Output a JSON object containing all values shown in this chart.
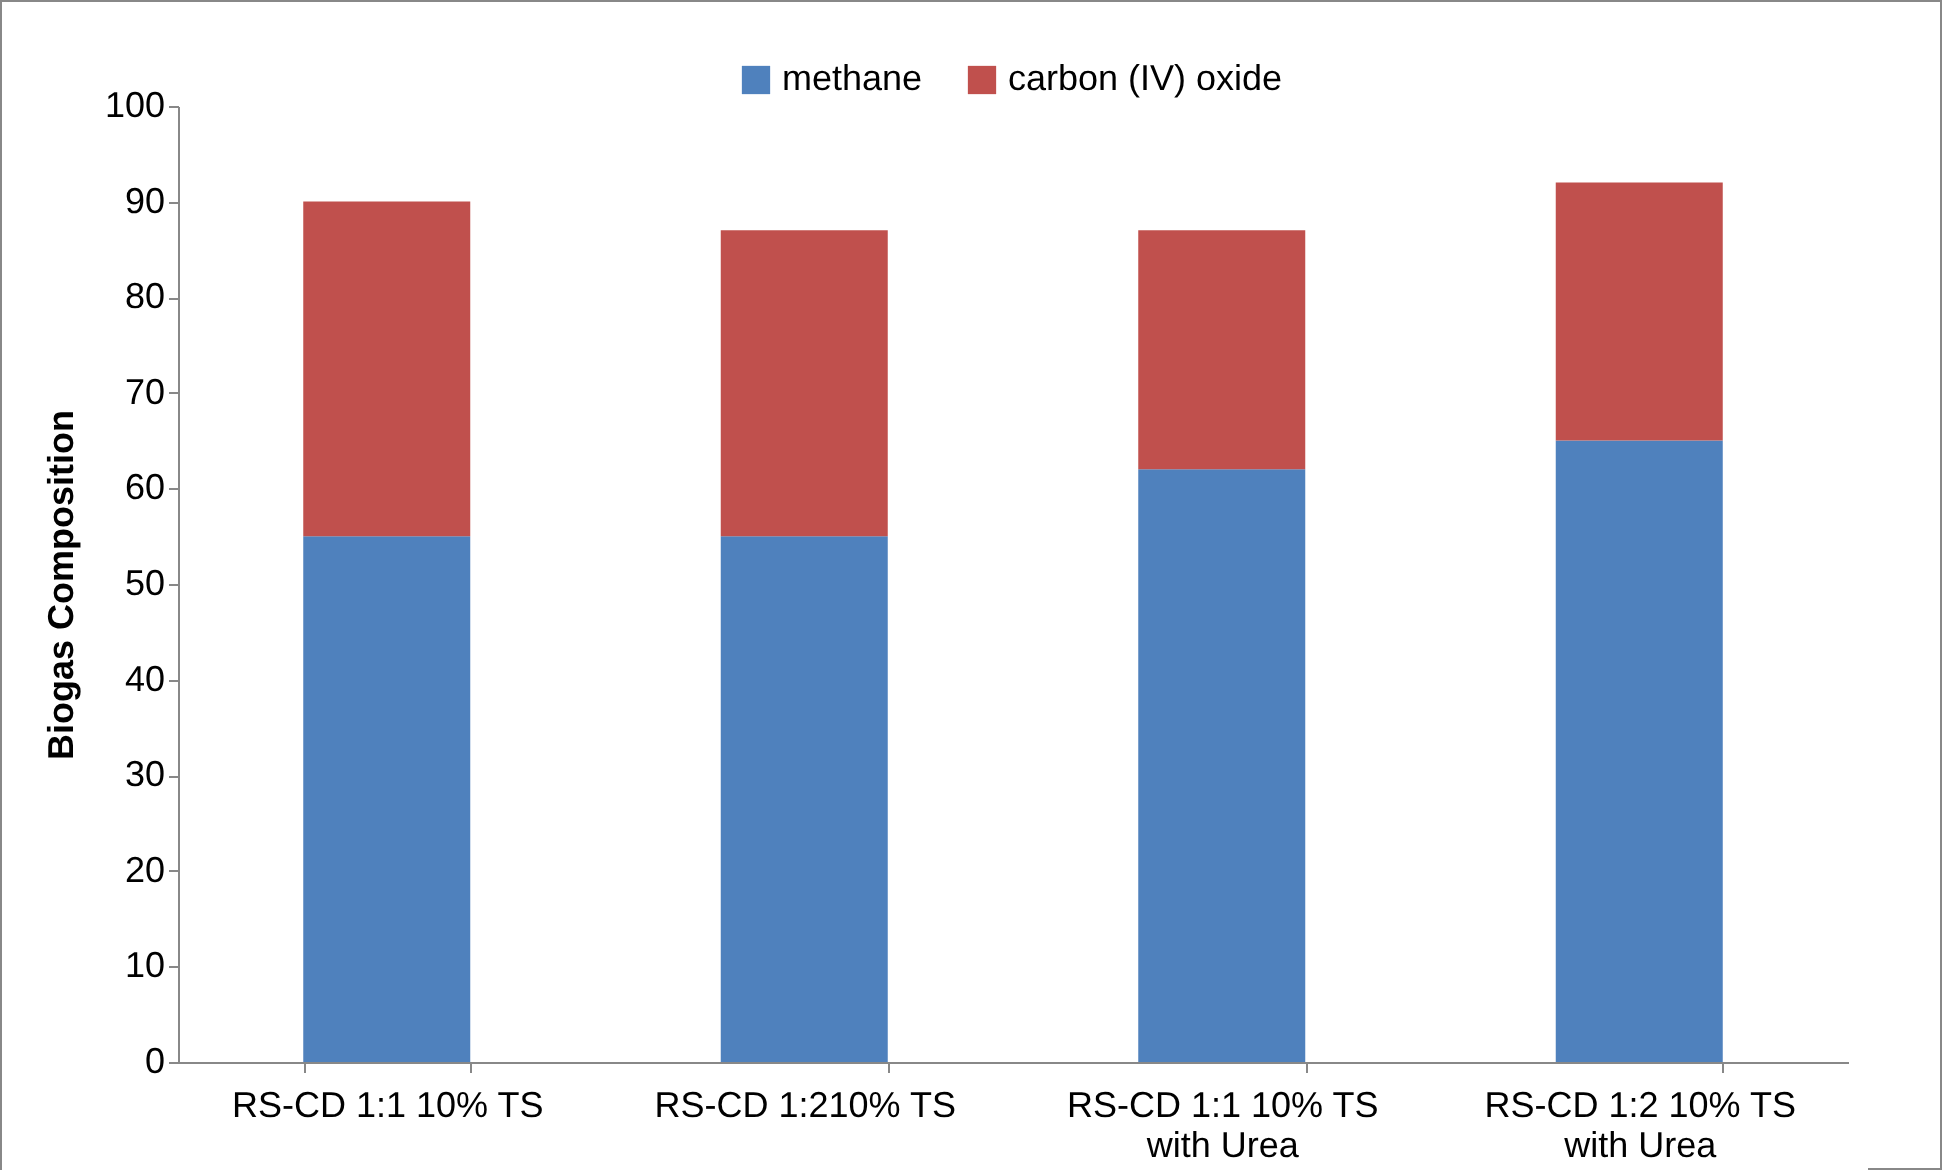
{
  "chart_data": {
    "type": "bar",
    "stacked": true,
    "ylabel": "Biogas Composition",
    "categories": [
      "RS-CD  1:1 10% TS",
      "RS-CD  1:210% TS",
      "RS-CD  1:1 10% TS\nwith Urea",
      "RS-CD  1:2 10% TS\nwith Urea"
    ],
    "series": [
      {
        "name": "methane",
        "color": "#4f81bd",
        "values": [
          55,
          55,
          62,
          65
        ]
      },
      {
        "name": "carbon (IV) oxide",
        "color": "#c0504d",
        "values": [
          35,
          32,
          25,
          27
        ]
      }
    ],
    "ylim": [
      0,
      100
    ],
    "yticks": [
      0,
      10,
      20,
      30,
      40,
      50,
      60,
      70,
      80,
      90,
      100
    ],
    "legend": "top",
    "grid": false
  }
}
